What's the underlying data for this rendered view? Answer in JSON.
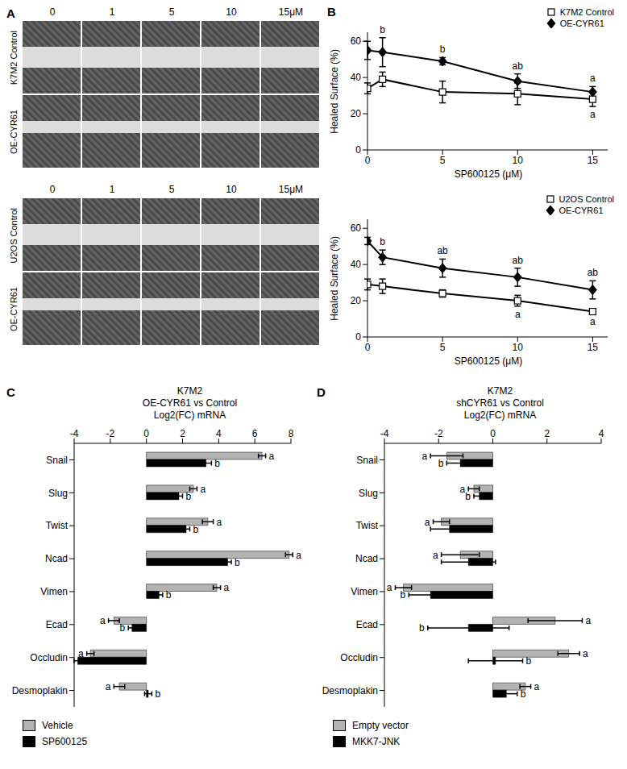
{
  "panel_a": {
    "label": "A",
    "groups": [
      {
        "columns": [
          "0",
          "1",
          "5",
          "10",
          "15μM"
        ],
        "rows": [
          "K7M2 Control",
          "OE-CYR61"
        ]
      },
      {
        "columns": [
          "0",
          "1",
          "5",
          "10",
          "15μM"
        ],
        "rows": [
          "U2OS Control",
          "OE-CYR61"
        ]
      }
    ]
  },
  "chart_data": [
    {
      "label": "B",
      "type": "line",
      "xlabel": "SP600125 (μM)",
      "ylabel": "Healed Surface (%)",
      "x": [
        0,
        1,
        5,
        10,
        15
      ],
      "xlim": [
        0,
        16
      ],
      "xticks": [
        0,
        5,
        10,
        15
      ],
      "ylim": [
        0,
        65
      ],
      "yticks": [
        0,
        20,
        40,
        60
      ],
      "legend": "top right",
      "series": [
        {
          "name": "K7M2 Control",
          "color": "#000000",
          "marker": "open-square",
          "values": [
            34,
            39,
            32,
            31,
            28
          ],
          "errors": [
            3,
            4,
            6,
            6,
            4
          ],
          "annotations": [
            null,
            null,
            null,
            null,
            "a"
          ]
        },
        {
          "name": "OE-CYR61",
          "color": "#000000",
          "marker": "diamond",
          "values": [
            55,
            54,
            49,
            38,
            32
          ],
          "errors": [
            5,
            8,
            2,
            4,
            3
          ],
          "annotations": [
            null,
            "b",
            "b",
            "ab",
            "a"
          ]
        }
      ]
    },
    {
      "type": "line",
      "xlabel": "SP600125 (μM)",
      "ylabel": "Healed Surface (%)",
      "x": [
        0,
        1,
        5,
        10,
        15
      ],
      "xlim": [
        0,
        16
      ],
      "xticks": [
        0,
        5,
        10,
        15
      ],
      "ylim": [
        0,
        65
      ],
      "yticks": [
        0,
        20,
        40,
        60
      ],
      "legend": "top right",
      "series": [
        {
          "name": "U2OS Control",
          "color": "#000000",
          "marker": "open-square",
          "values": [
            29,
            28,
            24,
            20,
            14
          ],
          "errors": [
            3,
            4,
            2,
            3,
            1
          ],
          "annotations": [
            null,
            null,
            null,
            "a",
            "a"
          ]
        },
        {
          "name": "OE-CYR61",
          "color": "#000000",
          "marker": "diamond",
          "values": [
            53,
            44,
            38,
            33,
            26
          ],
          "errors": [
            2,
            4,
            5,
            5,
            5
          ],
          "annotations": [
            null,
            "b",
            "ab",
            "ab",
            "ab"
          ]
        }
      ]
    },
    {
      "label": "C",
      "type": "bar",
      "orientation": "horizontal",
      "title": "K7M2",
      "subtitle": "OE-CYR61 vs Control",
      "xlabel": "Log2(FC) mRNA",
      "categories": [
        "Snail",
        "Slug",
        "Twist",
        "Ncad",
        "Vimen",
        "Ecad",
        "Occludin",
        "Desmoplakin"
      ],
      "xlim": [
        -4,
        8
      ],
      "xticks": [
        -4,
        -2,
        0,
        2,
        4,
        6,
        8
      ],
      "legend": "bottom left",
      "series": [
        {
          "name": "Vehicle",
          "color": "#b3b3b3",
          "values": [
            6.4,
            2.6,
            3.4,
            7.9,
            3.9,
            -1.8,
            -3.1,
            -1.5
          ],
          "errors": [
            0.2,
            0.2,
            0.3,
            0.2,
            0.2,
            0.3,
            0.2,
            0.3
          ],
          "annotations": [
            "a",
            "a",
            "a",
            "a",
            "a",
            "a",
            "a",
            "a"
          ]
        },
        {
          "name": "SP600125",
          "color": "#000000",
          "values": [
            3.3,
            1.8,
            2.2,
            4.5,
            0.7,
            -0.8,
            -3.8,
            0.1
          ],
          "errors": [
            0.3,
            0.2,
            0.2,
            0.2,
            0.2,
            0.2,
            0.2,
            0.2
          ],
          "annotations": [
            "b",
            "b",
            "b",
            "b",
            "b",
            "b",
            null,
            "b"
          ]
        }
      ]
    },
    {
      "label": "D",
      "type": "bar",
      "orientation": "horizontal",
      "title": "K7M2",
      "subtitle": "shCYR61 vs Control",
      "xlabel": "Log2(FC) mRNA",
      "categories": [
        "Snail",
        "Slug",
        "Twist",
        "Ncad",
        "Vimen",
        "Ecad",
        "Occludin",
        "Desmoplakin"
      ],
      "xlim": [
        -4,
        4
      ],
      "xticks": [
        -4,
        -2,
        0,
        2,
        4
      ],
      "legend": "bottom left",
      "series": [
        {
          "name": "Empty vector",
          "color": "#b3b3b3",
          "values": [
            -1.7,
            -0.7,
            -1.9,
            -1.2,
            -3.3,
            2.3,
            2.8,
            1.2
          ],
          "errors": [
            0.6,
            0.2,
            0.3,
            0.7,
            0.3,
            1.0,
            0.4,
            0.2
          ],
          "annotations": [
            "a",
            "a",
            "a",
            "a",
            "a",
            "a",
            "a",
            "a"
          ]
        },
        {
          "name": "MKK7-JNK",
          "color": "#000000",
          "values": [
            -1.2,
            -0.5,
            -1.6,
            -0.9,
            -2.3,
            -0.9,
            0.1,
            0.5
          ],
          "errors": [
            0.5,
            0.2,
            0.7,
            1.0,
            0.8,
            1.5,
            1.0,
            0.4
          ],
          "annotations": [
            "b",
            "b",
            null,
            null,
            "b",
            "b",
            "b",
            "b"
          ]
        }
      ]
    }
  ]
}
